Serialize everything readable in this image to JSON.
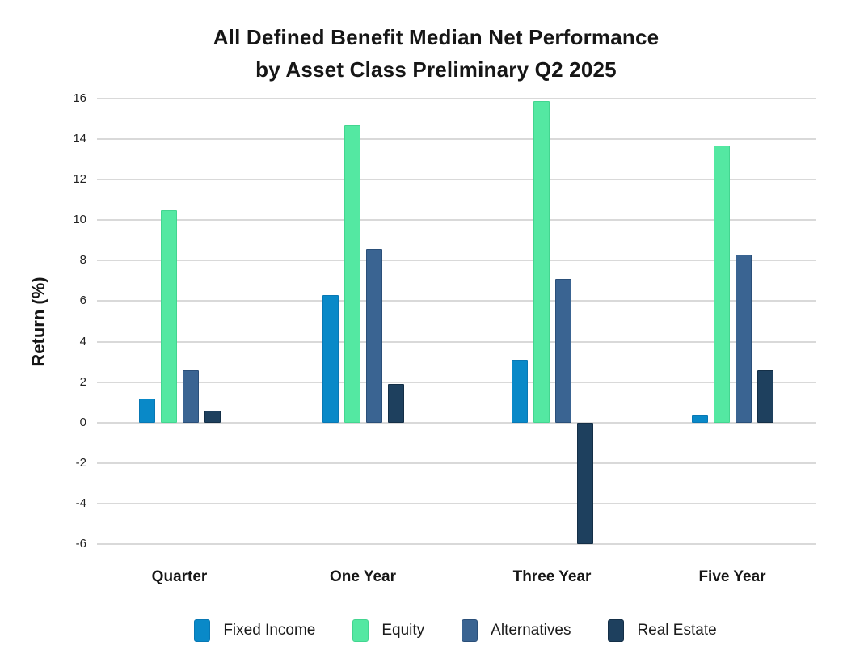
{
  "title": {
    "line1": "All Defined Benefit Median Net Performance",
    "line2": "by Asset Class Preliminary Q2 2025"
  },
  "chart_data": {
    "type": "bar",
    "title": "All Defined Benefit Median Net Performance by Asset Class Preliminary Q2 2025",
    "xlabel": "",
    "ylabel": "Return (%)",
    "categories": [
      "Quarter",
      "One Year",
      "Three Year",
      "Five Year"
    ],
    "series": [
      {
        "name": "Fixed Income",
        "color": "#0989C8",
        "border_color": "#0878B4",
        "values": [
          1.2,
          6.3,
          3.1,
          0.4
        ]
      },
      {
        "name": "Equity",
        "color": "#54E8A2",
        "border_color": "#43D590",
        "values": [
          10.5,
          14.7,
          15.9,
          13.7
        ]
      },
      {
        "name": "Alternatives",
        "color": "#3A6492",
        "border_color": "#2A4F79",
        "values": [
          2.6,
          8.6,
          7.1,
          8.3
        ]
      },
      {
        "name": "Real Estate",
        "color": "#1E405E",
        "border_color": "#142F47",
        "values": [
          0.6,
          1.9,
          -6.0,
          2.6
        ]
      }
    ],
    "ylim": [
      -6,
      16
    ],
    "yticks": [
      16,
      14,
      12,
      10,
      8,
      6,
      4,
      2,
      0,
      -2,
      -4,
      -6
    ],
    "grid": true,
    "gridline_color": "#D9D9D9",
    "background_color": "#FFFFFF",
    "legend_position": "bottom"
  }
}
